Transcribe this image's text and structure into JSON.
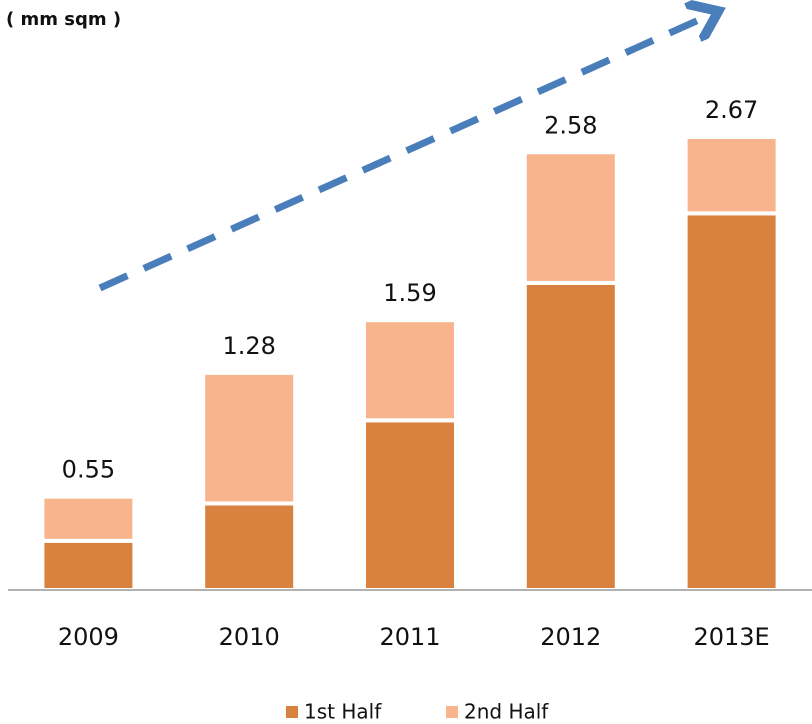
{
  "chart_data": {
    "type": "stacked_bar",
    "y_label": "( mm sqm )",
    "categories": [
      "2009",
      "2010",
      "2011",
      "2012",
      "2013E"
    ],
    "series": [
      {
        "name": "1st Half",
        "color": "#d9823f",
        "values": [
          0.29,
          0.51,
          1.0,
          1.81,
          2.22
        ]
      },
      {
        "name": "2nd Half",
        "color": "#f8b48d",
        "values": [
          0.26,
          0.77,
          0.59,
          0.77,
          0.45
        ]
      }
    ],
    "totals": [
      0.55,
      1.28,
      1.59,
      2.58,
      2.67
    ],
    "ylim": [
      0,
      3.0
    ]
  }
}
